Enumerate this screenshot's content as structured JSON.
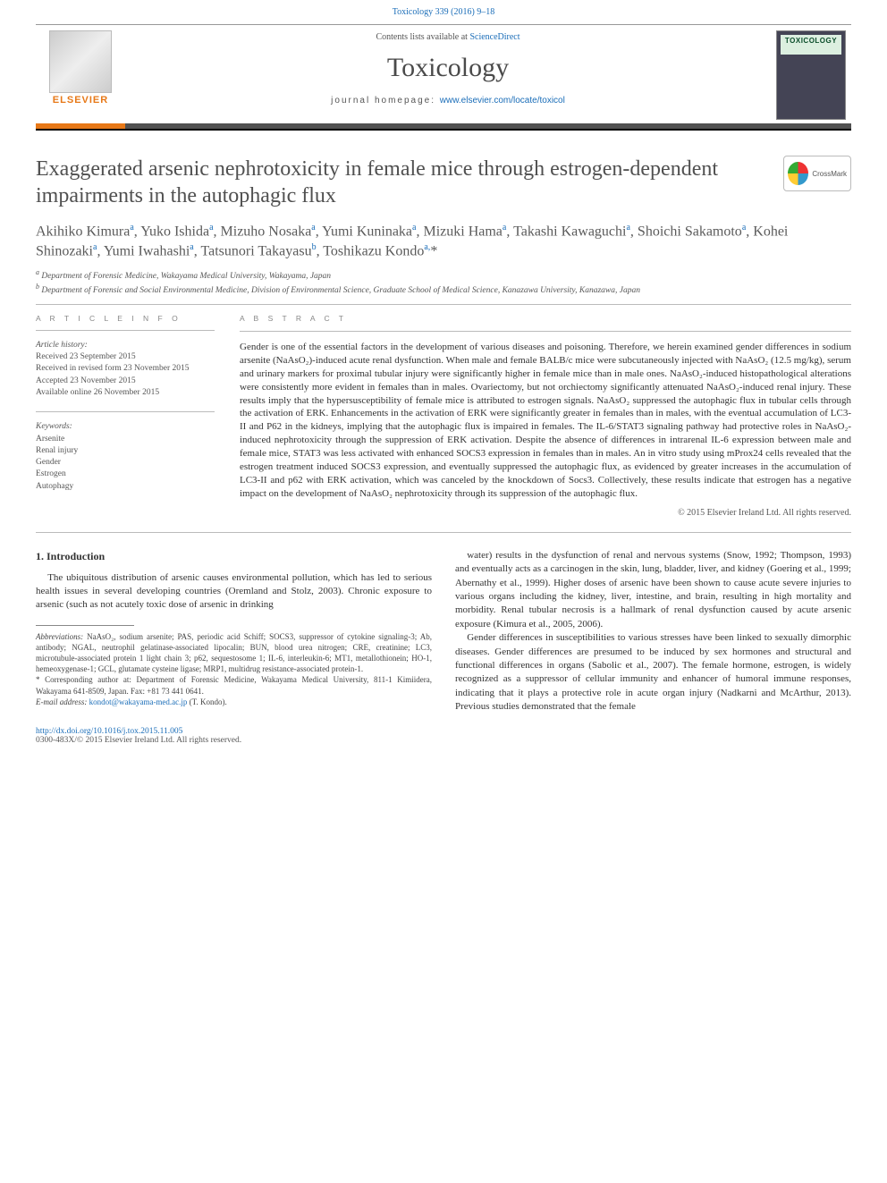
{
  "header_ref": "Toxicology 339 (2016) 9–18",
  "masthead": {
    "contents_prefix": "Contents lists available at ",
    "contents_link": "ScienceDirect",
    "journal": "Toxicology",
    "homepage_prefix": "journal homepage: ",
    "homepage_link": "www.elsevier.com/locate/toxicol",
    "publisher": "ELSEVIER",
    "cover_title": "TOXICOLOGY"
  },
  "crossmark_label": "CrossMark",
  "title": "Exaggerated arsenic nephrotoxicity in female mice through estrogen-dependent impairments in the autophagic flux",
  "authors_html": "Akihiko Kimura<sup>a</sup>, Yuko Ishida<sup>a</sup>, Mizuho Nosaka<sup>a</sup>, Yumi Kuninaka<sup>a</sup>, Mizuki Hama<sup>a</sup>, Takashi Kawaguchi<sup>a</sup>, Shoichi Sakamoto<sup>a</sup>, Kohei Shinozaki<sup>a</sup>, Yumi Iwahashi<sup>a</sup>, Tatsunori Takayasu<sup>b</sup>, Toshikazu Kondo<sup>a,</sup>*",
  "affiliations": {
    "a": "Department of Forensic Medicine, Wakayama Medical University, Wakayama, Japan",
    "b": "Department of Forensic and Social Environmental Medicine, Division of Environmental Science, Graduate School of Medical Science, Kanazawa University, Kanazawa, Japan"
  },
  "article_info_label": "A R T I C L E  I N F O",
  "abstract_label": "A B S T R A C T",
  "history": {
    "heading": "Article history:",
    "received": "Received 23 September 2015",
    "revised": "Received in revised form 23 November 2015",
    "accepted": "Accepted 23 November 2015",
    "online": "Available online 26 November 2015"
  },
  "keywords": {
    "heading": "Keywords:",
    "items": [
      "Arsenite",
      "Renal injury",
      "Gender",
      "Estrogen",
      "Autophagy"
    ]
  },
  "abstract": "Gender is one of the essential factors in the development of various diseases and poisoning. Therefore, we herein examined gender differences in sodium arsenite (NaAsO₂)-induced acute renal dysfunction. When male and female BALB/c mice were subcutaneously injected with NaAsO₂ (12.5 mg/kg), serum and urinary markers for proximal tubular injury were significantly higher in female mice than in male ones. NaAsO₂-induced histopathological alterations were consistently more evident in females than in males. Ovariectomy, but not orchiectomy significantly attenuated NaAsO₂-induced renal injury. These results imply that the hypersusceptibility of female mice is attributed to estrogen signals. NaAsO₂ suppressed the autophagic flux in tubular cells through the activation of ERK. Enhancements in the activation of ERK were significantly greater in females than in males, with the eventual accumulation of LC3-II and P62 in the kidneys, implying that the autophagic flux is impaired in females. The IL-6/STAT3 signaling pathway had protective roles in NaAsO₂-induced nephrotoxicity through the suppression of ERK activation. Despite the absence of differences in intrarenal IL-6 expression between male and female mice, STAT3 was less activated with enhanced SOCS3 expression in females than in males. An in vitro study using mProx24 cells revealed that the estrogen treatment induced SOCS3 expression, and eventually suppressed the autophagic flux, as evidenced by greater increases in the accumulation of LC3-II and p62 with ERK activation, which was canceled by the knockdown of Socs3. Collectively, these results indicate that estrogen has a negative impact on the development of NaAsO₂ nephrotoxicity through its suppression of the autophagic flux.",
  "copyright": "© 2015 Elsevier Ireland Ltd. All rights reserved.",
  "intro_heading": "1. Introduction",
  "intro_p1": "The ubiquitous distribution of arsenic causes environmental pollution, which has led to serious health issues in several developing countries (Oremland and Stolz, 2003). Chronic exposure to arsenic (such as not acutely toxic dose of arsenic in drinking",
  "intro_col2a": "water) results in the dysfunction of renal and nervous systems (Snow, 1992; Thompson, 1993) and eventually acts as a carcinogen in the skin, lung, bladder, liver, and kidney (Goering et al., 1999; Abernathy et al., 1999). Higher doses of arsenic have been shown to cause acute severe injuries to various organs including the kidney, liver, intestine, and brain, resulting in high mortality and morbidity. Renal tubular necrosis is a hallmark of renal dysfunction caused by acute arsenic exposure (Kimura et al., 2005, 2006).",
  "intro_col2b": "Gender differences in susceptibilities to various stresses have been linked to sexually dimorphic diseases. Gender differences are presumed to be induced by sex hormones and structural and functional differences in organs (Sabolic et al., 2007). The female hormone, estrogen, is widely recognized as a suppressor of cellular immunity and enhancer of humoral immune responses, indicating that it plays a protective role in acute organ injury (Nadkarni and McArthur, 2013). Previous studies demonstrated that the female",
  "footnotes": {
    "abbrev_label": "Abbreviations:",
    "abbrev": " NaAsO₂, sodium arsenite; PAS, periodic acid Schiff; SOCS3, suppressor of cytokine signaling-3; Ab, antibody; NGAL, neutrophil gelatinase-associated lipocalin; BUN, blood urea nitrogen; CRE, creatinine; LC3, microtubule-associated protein 1 light chain 3; p62, sequestosome 1; IL-6, interleukin-6; MT1, metallothionein; HO-1, hemeoxygenase-1; GCL, glutamate cysteine ligase; MRP1, multidrug resistance-associated protein-1.",
    "corr": "* Corresponding author at: Department of Forensic Medicine, Wakayama Medical University, 811-1 Kimiidera, Wakayama 641-8509, Japan. Fax: +81 73 441 0641.",
    "email_label": "E-mail address:",
    "email": "kondot@wakayama-med.ac.jp",
    "email_suffix": " (T. Kondo)."
  },
  "doi": "http://dx.doi.org/10.1016/j.tox.2015.11.005",
  "issn_line": "0300-483X/© 2015 Elsevier Ireland Ltd. All rights reserved.",
  "colors": {
    "link": "#1a6db8",
    "elsevier_orange": "#e77817",
    "rule_dark": "#515151"
  }
}
